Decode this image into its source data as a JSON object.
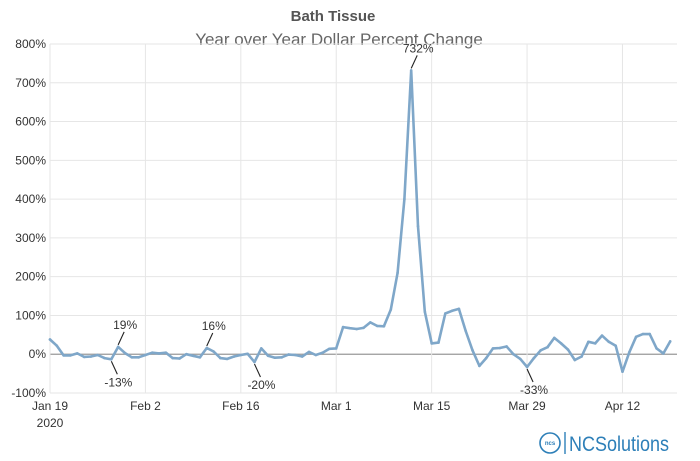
{
  "chart_data": {
    "type": "line",
    "title": "Bath Tissue",
    "subtitle": "Year over Year Dollar Percent Change",
    "ylim": [
      -100,
      800
    ],
    "y_ticks": [
      {
        "value": -100,
        "label": "-100%"
      },
      {
        "value": 0,
        "label": "0%"
      },
      {
        "value": 100,
        "label": "100%"
      },
      {
        "value": 200,
        "label": "200%"
      },
      {
        "value": 300,
        "label": "300%"
      },
      {
        "value": 400,
        "label": "400%"
      },
      {
        "value": 500,
        "label": "500%"
      },
      {
        "value": 600,
        "label": "600%"
      },
      {
        "value": 700,
        "label": "700%"
      },
      {
        "value": 800,
        "label": "800%"
      }
    ],
    "x_start": "2020-01-19",
    "x_end": "2020-04-20",
    "x_ticks": [
      {
        "date": "2020-01-19",
        "label": "Jan 19",
        "sublabel": "2020"
      },
      {
        "date": "2020-02-02",
        "label": "Feb 2"
      },
      {
        "date": "2020-02-16",
        "label": "Feb 16"
      },
      {
        "date": "2020-03-01",
        "label": "Mar 1"
      },
      {
        "date": "2020-03-15",
        "label": "Mar 15"
      },
      {
        "date": "2020-03-29",
        "label": "Mar 29"
      },
      {
        "date": "2020-04-12",
        "label": "Apr 12"
      }
    ],
    "grid": true,
    "series": [
      {
        "color": "#7fa7c9",
        "points": [
          [
            "2020-01-19",
            38
          ],
          [
            "2020-01-20",
            22
          ],
          [
            "2020-01-21",
            -3
          ],
          [
            "2020-01-22",
            -3
          ],
          [
            "2020-01-23",
            2
          ],
          [
            "2020-01-24",
            -7
          ],
          [
            "2020-01-25",
            -6
          ],
          [
            "2020-01-26",
            -2
          ],
          [
            "2020-01-27",
            -10
          ],
          [
            "2020-01-28",
            -13
          ],
          [
            "2020-01-29",
            19
          ],
          [
            "2020-01-30",
            3
          ],
          [
            "2020-01-31",
            -8
          ],
          [
            "2020-02-01",
            -8
          ],
          [
            "2020-02-02",
            -2
          ],
          [
            "2020-02-03",
            4
          ],
          [
            "2020-02-04",
            2
          ],
          [
            "2020-02-05",
            4
          ],
          [
            "2020-02-06",
            -10
          ],
          [
            "2020-02-07",
            -11
          ],
          [
            "2020-02-08",
            0
          ],
          [
            "2020-02-09",
            -4
          ],
          [
            "2020-02-10",
            -8
          ],
          [
            "2020-02-11",
            16
          ],
          [
            "2020-02-12",
            7
          ],
          [
            "2020-02-13",
            -10
          ],
          [
            "2020-02-14",
            -12
          ],
          [
            "2020-02-15",
            -6
          ],
          [
            "2020-02-16",
            -2
          ],
          [
            "2020-02-17",
            1
          ],
          [
            "2020-02-18",
            -20
          ],
          [
            "2020-02-19",
            15
          ],
          [
            "2020-02-20",
            -4
          ],
          [
            "2020-02-21",
            -9
          ],
          [
            "2020-02-22",
            -8
          ],
          [
            "2020-02-23",
            -1
          ],
          [
            "2020-02-24",
            -2
          ],
          [
            "2020-02-25",
            -6
          ],
          [
            "2020-02-26",
            6
          ],
          [
            "2020-02-27",
            -2
          ],
          [
            "2020-02-28",
            4
          ],
          [
            "2020-02-29",
            14
          ],
          [
            "2020-03-01",
            15
          ],
          [
            "2020-03-02",
            70
          ],
          [
            "2020-03-03",
            67
          ],
          [
            "2020-03-04",
            65
          ],
          [
            "2020-03-05",
            68
          ],
          [
            "2020-03-06",
            82
          ],
          [
            "2020-03-07",
            73
          ],
          [
            "2020-03-08",
            72
          ],
          [
            "2020-03-09",
            115
          ],
          [
            "2020-03-10",
            210
          ],
          [
            "2020-03-11",
            400
          ],
          [
            "2020-03-12",
            732
          ],
          [
            "2020-03-13",
            330
          ],
          [
            "2020-03-14",
            110
          ],
          [
            "2020-03-15",
            28
          ],
          [
            "2020-03-16",
            30
          ],
          [
            "2020-03-17",
            105
          ],
          [
            "2020-03-18",
            112
          ],
          [
            "2020-03-19",
            117
          ],
          [
            "2020-03-20",
            60
          ],
          [
            "2020-03-21",
            10
          ],
          [
            "2020-03-22",
            -30
          ],
          [
            "2020-03-23",
            -10
          ],
          [
            "2020-03-24",
            15
          ],
          [
            "2020-03-25",
            16
          ],
          [
            "2020-03-26",
            20
          ],
          [
            "2020-03-27",
            0
          ],
          [
            "2020-03-28",
            -12
          ],
          [
            "2020-03-29",
            -33
          ],
          [
            "2020-03-30",
            -10
          ],
          [
            "2020-03-31",
            10
          ],
          [
            "2020-04-01",
            18
          ],
          [
            "2020-04-02",
            42
          ],
          [
            "2020-04-03",
            28
          ],
          [
            "2020-04-04",
            12
          ],
          [
            "2020-04-05",
            -15
          ],
          [
            "2020-04-06",
            -6
          ],
          [
            "2020-04-07",
            32
          ],
          [
            "2020-04-08",
            28
          ],
          [
            "2020-04-09",
            48
          ],
          [
            "2020-04-10",
            32
          ],
          [
            "2020-04-11",
            22
          ],
          [
            "2020-04-12",
            -45
          ],
          [
            "2020-04-13",
            5
          ],
          [
            "2020-04-14",
            45
          ],
          [
            "2020-04-15",
            52
          ],
          [
            "2020-04-16",
            52
          ],
          [
            "2020-04-17",
            15
          ],
          [
            "2020-04-18",
            2
          ],
          [
            "2020-04-19",
            33
          ]
        ]
      }
    ],
    "annotations": [
      {
        "date": "2020-01-28",
        "value": -13,
        "label": "-13%",
        "place": "below"
      },
      {
        "date": "2020-01-29",
        "value": 19,
        "label": "19%",
        "place": "above"
      },
      {
        "date": "2020-02-11",
        "value": 16,
        "label": "16%",
        "place": "above"
      },
      {
        "date": "2020-02-18",
        "value": -20,
        "label": "-20%",
        "place": "below"
      },
      {
        "date": "2020-03-12",
        "value": 732,
        "label": "732%",
        "place": "above"
      },
      {
        "date": "2020-03-29",
        "value": -33,
        "label": "-33%",
        "place": "below"
      }
    ]
  },
  "logo": {
    "badge_text": "ncs",
    "name": "NCSolutions",
    "color": "#2d7fb8"
  }
}
